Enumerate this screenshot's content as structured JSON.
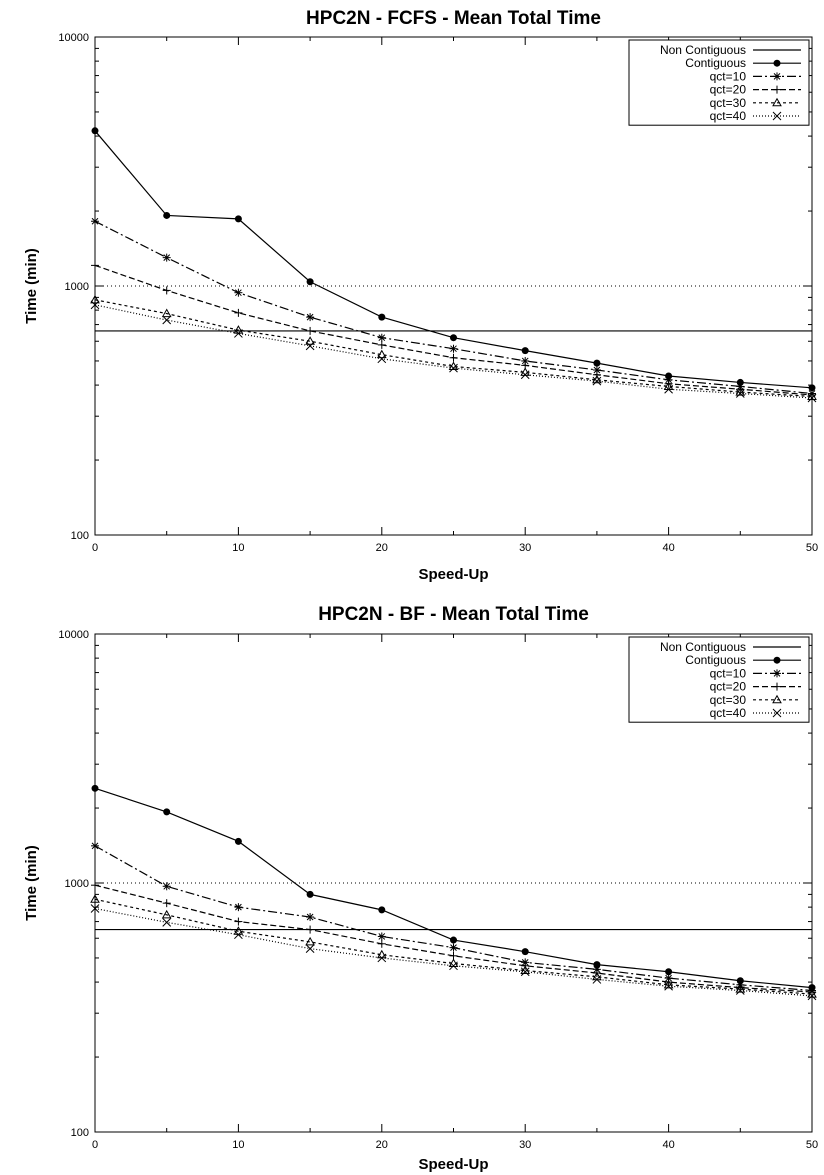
{
  "chart_data": [
    {
      "type": "line",
      "title": "HPC2N - FCFS - Mean Total Time",
      "xlabel": "Speed-Up",
      "ylabel": "Time (min)",
      "xlim": [
        0,
        50
      ],
      "ylim": [
        100,
        10000
      ],
      "yscale": "log",
      "xticks": [
        "0",
        "10",
        "20",
        "30",
        "40",
        "50"
      ],
      "yticks": [
        "100",
        "1000",
        "10000"
      ],
      "legend_position": "top-right",
      "grid": false,
      "reference_lines": [
        {
          "y": 1000,
          "style": "dotted"
        }
      ],
      "x": [
        0,
        5,
        10,
        15,
        20,
        25,
        30,
        35,
        40,
        45,
        50
      ],
      "series": [
        {
          "name": "Non Contiguous",
          "values": [
            660,
            660,
            660,
            660,
            660,
            660,
            660,
            660,
            660,
            660,
            660
          ]
        },
        {
          "name": "Contiguous",
          "values": [
            4200,
            1920,
            1860,
            1040,
            750,
            620,
            550,
            490,
            435,
            410,
            390
          ]
        },
        {
          "name": "qct=10",
          "values": [
            1820,
            1300,
            940,
            750,
            620,
            560,
            500,
            460,
            420,
            395,
            370
          ]
        },
        {
          "name": "qct=20",
          "values": [
            1210,
            960,
            780,
            660,
            580,
            515,
            480,
            440,
            405,
            385,
            365
          ]
        },
        {
          "name": "qct=30",
          "values": [
            880,
            775,
            665,
            600,
            530,
            475,
            450,
            420,
            395,
            375,
            360
          ]
        },
        {
          "name": "qct=40",
          "values": [
            840,
            730,
            645,
            575,
            510,
            468,
            440,
            415,
            385,
            370,
            355
          ]
        }
      ]
    },
    {
      "type": "line",
      "title": "HPC2N - BF - Mean Total Time",
      "xlabel": "Speed-Up",
      "ylabel": "Time (min)",
      "xlim": [
        0,
        50
      ],
      "ylim": [
        100,
        10000
      ],
      "yscale": "log",
      "xticks": [
        "0",
        "10",
        "20",
        "30",
        "40",
        "50"
      ],
      "yticks": [
        "100",
        "1000",
        "10000"
      ],
      "legend_position": "top-right",
      "grid": false,
      "reference_lines": [
        {
          "y": 1000,
          "style": "dotted"
        }
      ],
      "x": [
        0,
        5,
        10,
        15,
        20,
        25,
        30,
        35,
        40,
        45,
        50
      ],
      "series": [
        {
          "name": "Non Contiguous",
          "values": [
            650,
            650,
            650,
            650,
            650,
            650,
            650,
            650,
            650,
            650,
            650
          ]
        },
        {
          "name": "Contiguous",
          "values": [
            2400,
            1930,
            1470,
            900,
            780,
            590,
            530,
            470,
            440,
            405,
            380
          ]
        },
        {
          "name": "qct=10",
          "values": [
            1410,
            970,
            800,
            730,
            610,
            550,
            480,
            450,
            415,
            390,
            370
          ]
        },
        {
          "name": "qct=20",
          "values": [
            980,
            830,
            700,
            650,
            570,
            510,
            465,
            435,
            400,
            380,
            365
          ]
        },
        {
          "name": "qct=30",
          "values": [
            860,
            745,
            640,
            580,
            515,
            475,
            445,
            420,
            390,
            375,
            358
          ]
        },
        {
          "name": "qct=40",
          "values": [
            790,
            695,
            620,
            545,
            500,
            465,
            440,
            410,
            385,
            370,
            352
          ]
        }
      ]
    }
  ]
}
